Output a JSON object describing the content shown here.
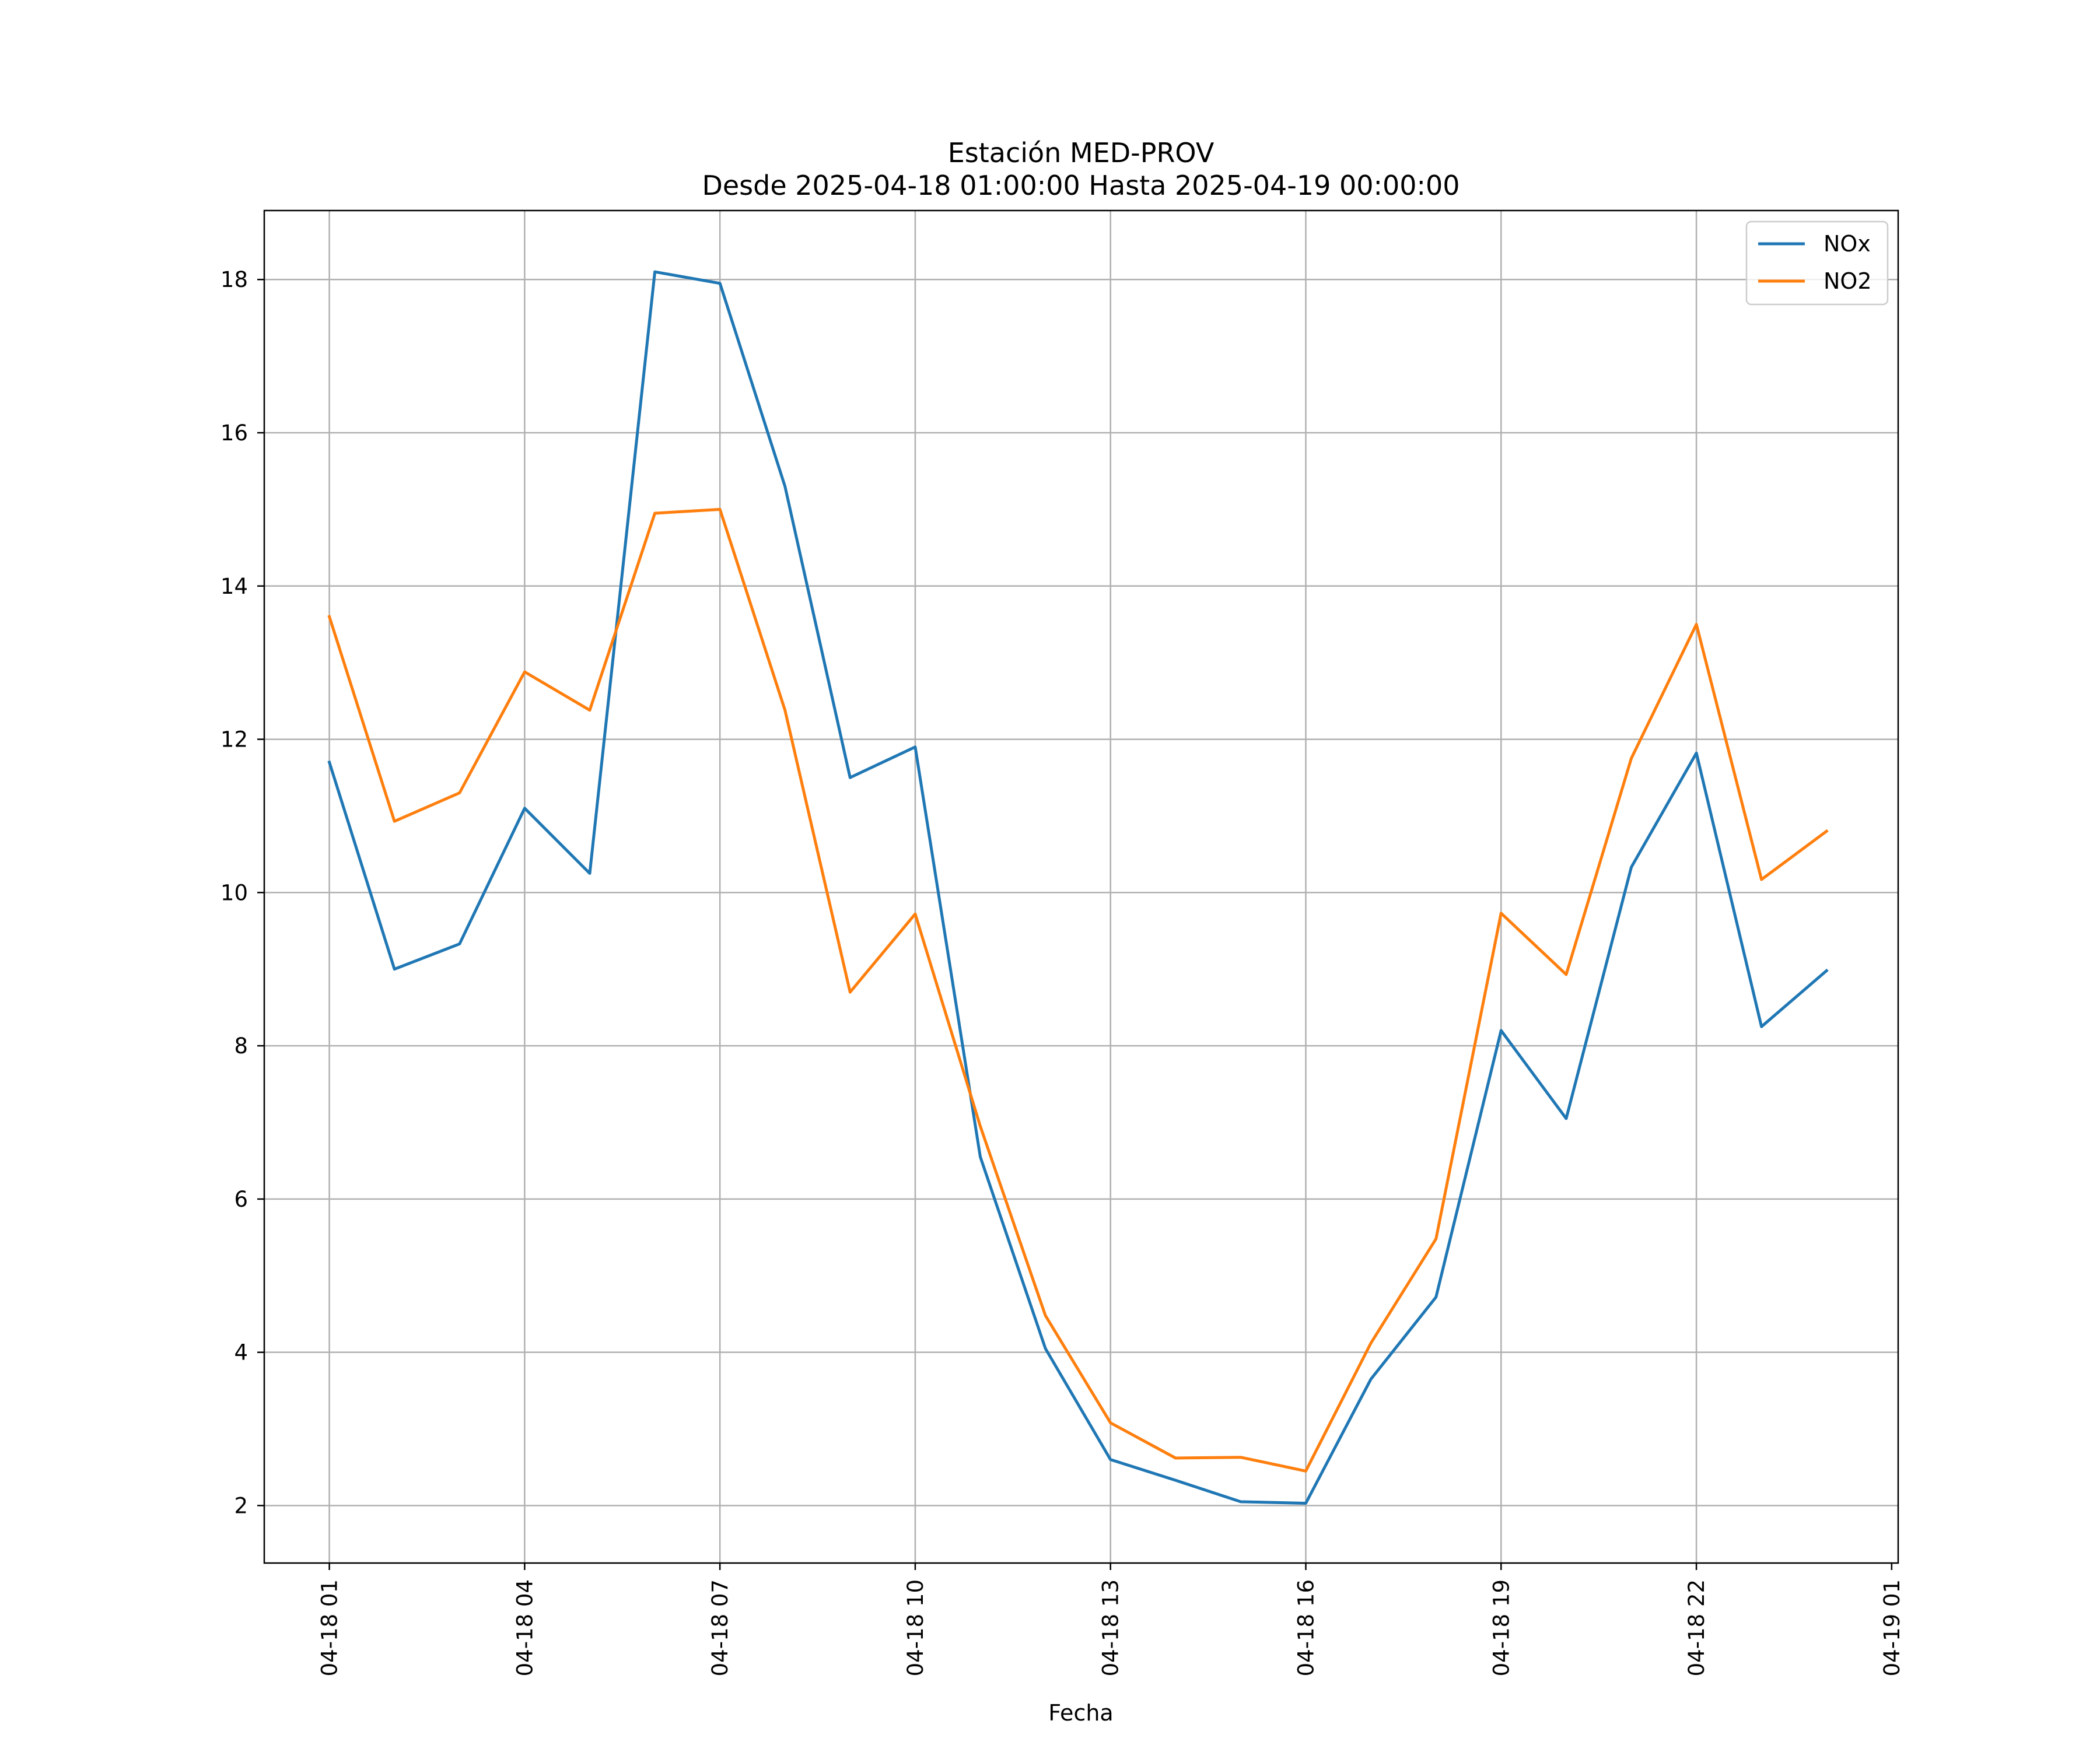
{
  "chart_data": {
    "type": "line",
    "title": "Estación MED-PROV",
    "subtitle": "Desde 2025-04-18 01:00:00 Hasta 2025-04-19 00:00:00",
    "xlabel": "Fecha",
    "ylabel": "",
    "x": [
      "2025-04-18 01:00",
      "2025-04-18 02:00",
      "2025-04-18 03:00",
      "2025-04-18 04:00",
      "2025-04-18 05:00",
      "2025-04-18 06:00",
      "2025-04-18 07:00",
      "2025-04-18 08:00",
      "2025-04-18 09:00",
      "2025-04-18 10:00",
      "2025-04-18 11:00",
      "2025-04-18 12:00",
      "2025-04-18 13:00",
      "2025-04-18 14:00",
      "2025-04-18 15:00",
      "2025-04-18 16:00",
      "2025-04-18 17:00",
      "2025-04-18 18:00",
      "2025-04-18 19:00",
      "2025-04-18 20:00",
      "2025-04-18 21:00",
      "2025-04-18 22:00",
      "2025-04-18 23:00",
      "2025-04-19 00:00"
    ],
    "xlim": [
      "2025-04-18 00:00",
      "2025-04-19 01:06"
    ],
    "ylim": [
      1.25,
      18.9
    ],
    "series": [
      {
        "name": "NOx",
        "color": "#1f77b4",
        "values": [
          11.7,
          9.0,
          9.33,
          11.1,
          10.25,
          18.1,
          17.95,
          15.3,
          11.5,
          11.9,
          6.55,
          4.05,
          2.6,
          2.33,
          2.05,
          2.03,
          3.65,
          4.72,
          8.2,
          7.05,
          10.33,
          11.82,
          8.25,
          8.98
        ]
      },
      {
        "name": "NO2",
        "color": "#ff7f0e",
        "values": [
          13.6,
          10.93,
          11.3,
          12.88,
          12.38,
          14.95,
          15.0,
          12.38,
          8.7,
          9.72,
          6.95,
          4.48,
          3.08,
          2.62,
          2.63,
          2.45,
          4.12,
          5.48,
          9.73,
          8.93,
          11.75,
          13.5,
          10.17,
          10.8
        ]
      }
    ],
    "x_ticks": [
      "04-18 01",
      "04-18 04",
      "04-18 07",
      "04-18 10",
      "04-18 13",
      "04-18 16",
      "04-18 19",
      "04-18 22",
      "04-19 01"
    ],
    "x_tick_hours": [
      1,
      4,
      7,
      10,
      13,
      16,
      19,
      22,
      25
    ],
    "y_ticks": [
      2,
      4,
      6,
      8,
      10,
      12,
      14,
      16,
      18
    ],
    "grid": true,
    "legend_position": "top-right"
  }
}
